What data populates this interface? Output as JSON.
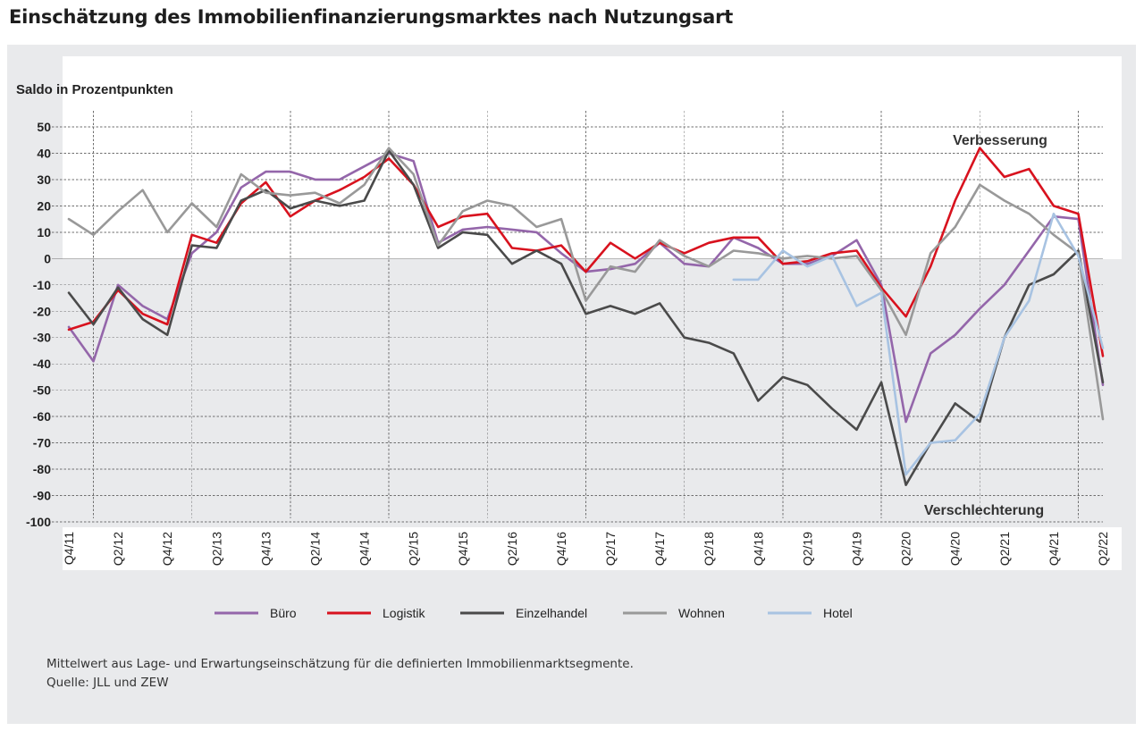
{
  "page": {
    "title": "Einschätzung des Immobilienfinanzierungsmarktes nach Nutzungsart",
    "footnote": "Mittelwert aus Lage- und Erwartungseinschätzung für die definierten Immobilienmarktsegmente.",
    "source": "Quelle: JLL und ZEW"
  },
  "colors": {
    "panel_background": "#e9eaec",
    "positive_area": "#ffffff",
    "Büro": "#9466aa",
    "Logistik": "#d8121e",
    "Einzelhandel": "#4a4a4a",
    "Wohnen": "#999999",
    "Hotel": "#a8c3e2"
  },
  "chart_data": {
    "type": "line",
    "title": "",
    "ylabel": "Saldo in Prozentpunkten",
    "xlabel": "",
    "ylim": [
      -100,
      50
    ],
    "yticks": [
      50,
      40,
      30,
      20,
      10,
      0,
      -10,
      -20,
      -30,
      -40,
      -50,
      -60,
      -70,
      -80,
      -90,
      -100
    ],
    "grid": true,
    "legend_position": "bottom",
    "annotations": [
      "Verbesserung",
      "Verschlechterung"
    ],
    "x": [
      "Q4/11",
      "Q1/12",
      "Q2/12",
      "Q3/12",
      "Q4/12",
      "Q1/13",
      "Q2/13",
      "Q3/13",
      "Q4/13",
      "Q1/14",
      "Q2/14",
      "Q3/14",
      "Q4/14",
      "Q1/15",
      "Q2/15",
      "Q3/15",
      "Q4/15",
      "Q1/16",
      "Q2/16",
      "Q3/16",
      "Q4/16",
      "Q1/17",
      "Q2/17",
      "Q3/17",
      "Q4/17",
      "Q1/18",
      "Q2/18",
      "Q3/18",
      "Q4/18",
      "Q1/19",
      "Q2/19",
      "Q3/19",
      "Q4/19",
      "Q1/20",
      "Q2/20",
      "Q3/20",
      "Q4/20",
      "Q1/21",
      "Q2/21",
      "Q3/21",
      "Q4/21",
      "Q1/22",
      "Q2/22"
    ],
    "x_tick_labels": [
      "Q4/11",
      "Q2/12",
      "Q4/12",
      "Q2/13",
      "Q4/13",
      "Q2/14",
      "Q4/14",
      "Q2/15",
      "Q4/15",
      "Q2/16",
      "Q4/16",
      "Q2/17",
      "Q4/17",
      "Q2/18",
      "Q4/18",
      "Q2/19",
      "Q4/19",
      "Q2/20",
      "Q4/20",
      "Q2/21",
      "Q4/21",
      "Q2/22"
    ],
    "series": [
      {
        "name": "Büro",
        "values": [
          -26,
          -39,
          -10,
          -18,
          -23,
          2,
          10,
          27,
          33,
          33,
          30,
          30,
          35,
          40,
          37,
          6,
          11,
          12,
          11,
          10,
          2,
          -5,
          -4,
          -2,
          6,
          -2,
          -3,
          8,
          4,
          -2,
          -2,
          1,
          7,
          -10,
          -62,
          -36,
          -29,
          -19,
          -10,
          3,
          16,
          15,
          -48
        ]
      },
      {
        "name": "Logistik",
        "values": [
          -27,
          -24,
          -12,
          -21,
          -25,
          9,
          6,
          21,
          29,
          16,
          22,
          26,
          31,
          38,
          28,
          12,
          16,
          17,
          4,
          3,
          5,
          -5,
          6,
          0,
          6,
          2,
          6,
          8,
          8,
          -2,
          -1,
          2,
          3,
          -11,
          -22,
          -3,
          22,
          42,
          31,
          34,
          20,
          17,
          -37
        ]
      },
      {
        "name": "Einzelhandel",
        "values": [
          -13,
          -25,
          -11,
          -23,
          -29,
          5,
          4,
          22,
          26,
          19,
          22,
          20,
          22,
          41,
          28,
          4,
          10,
          9,
          -2,
          3,
          -2,
          -21,
          -18,
          -21,
          -17,
          -30,
          -32,
          -36,
          -54,
          -45,
          -48,
          -57,
          -65,
          -47,
          -86,
          -70,
          -55,
          -62,
          -30,
          -10,
          -6,
          3,
          -47
        ]
      },
      {
        "name": "Wohnen",
        "values": [
          15,
          9,
          18,
          26,
          10,
          21,
          12,
          32,
          25,
          24,
          25,
          21,
          28,
          42,
          32,
          5,
          18,
          22,
          20,
          12,
          15,
          -16,
          -3,
          -5,
          7,
          1,
          -3,
          3,
          2,
          0,
          1,
          0,
          1,
          -12,
          -29,
          2,
          12,
          28,
          22,
          17,
          9,
          2,
          -61
        ]
      },
      {
        "name": "Hotel",
        "values": [
          null,
          null,
          null,
          null,
          null,
          null,
          null,
          null,
          null,
          null,
          null,
          null,
          null,
          null,
          null,
          null,
          null,
          null,
          null,
          null,
          null,
          null,
          null,
          null,
          null,
          null,
          null,
          -8,
          -8,
          3,
          -3,
          1,
          -18,
          -13,
          -82,
          -70,
          -69,
          -59,
          -30,
          -16,
          17,
          1,
          -34
        ]
      }
    ]
  }
}
